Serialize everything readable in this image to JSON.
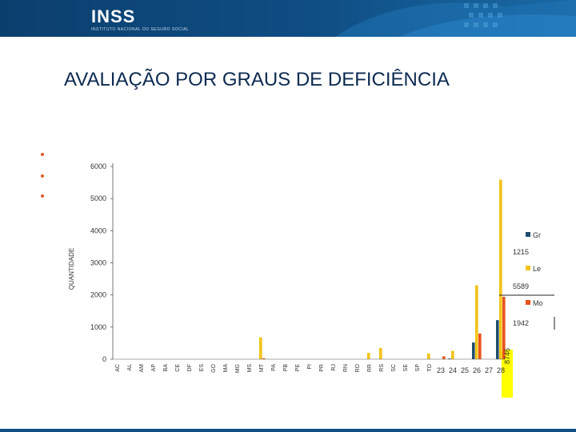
{
  "header": {
    "logo": "INSS",
    "tagline": "INSTITUTO NACIONAL DO SEGURO SOCIAL"
  },
  "slide": {
    "title": "AVALIAÇÃO POR GRAUS DE DEFICIÊNCIA"
  },
  "colors": {
    "header": "#0f4e84",
    "series_gr": "#1f4e6e",
    "series_le": "#f2c418",
    "series_mo": "#e9531d",
    "highlight": "#ffff00"
  },
  "chart_data": {
    "type": "bar",
    "ylabel": "QUANTIDADE",
    "ylim": [
      0,
      6000
    ],
    "yticks": [
      0,
      1000,
      2000,
      3000,
      4000,
      5000,
      6000
    ],
    "categories": [
      "AC",
      "AL",
      "AM",
      "AP",
      "BA",
      "CE",
      "DF",
      "ES",
      "GO",
      "MA",
      "MG",
      "MS",
      "MT",
      "PA",
      "PB",
      "PE",
      "PI",
      "PR",
      "RJ",
      "RN",
      "RO",
      "RR",
      "RS",
      "SC",
      "SE",
      "SP",
      "TO",
      "23",
      "24",
      "25",
      "26",
      "27",
      "28"
    ],
    "series": [
      {
        "name": "Gr",
        "values": [
          0,
          0,
          0,
          0,
          0,
          0,
          0,
          0,
          0,
          0,
          0,
          0,
          0,
          0,
          0,
          0,
          0,
          0,
          0,
          0,
          0,
          0,
          0,
          0,
          0,
          0,
          0,
          0,
          20,
          0,
          520,
          0,
          1215
        ]
      },
      {
        "name": "Le",
        "values": [
          0,
          0,
          0,
          0,
          0,
          0,
          0,
          0,
          0,
          0,
          0,
          0,
          680,
          0,
          0,
          0,
          0,
          0,
          0,
          0,
          0,
          200,
          350,
          0,
          0,
          0,
          180,
          0,
          260,
          0,
          2300,
          0,
          5589
        ]
      },
      {
        "name": "Mo",
        "values": [
          0,
          0,
          0,
          0,
          0,
          0,
          0,
          0,
          0,
          0,
          0,
          0,
          30,
          0,
          0,
          0,
          0,
          0,
          0,
          0,
          0,
          0,
          0,
          0,
          0,
          0,
          0,
          90,
          0,
          0,
          800,
          0,
          1942
        ]
      }
    ],
    "legend": {
      "position": "right",
      "items": [
        {
          "label": "Gr",
          "total": "1215"
        },
        {
          "label": "Le",
          "total": "5589"
        },
        {
          "label": "Mo",
          "total": "1942"
        }
      ]
    },
    "annotation": "8746",
    "grid": false
  }
}
